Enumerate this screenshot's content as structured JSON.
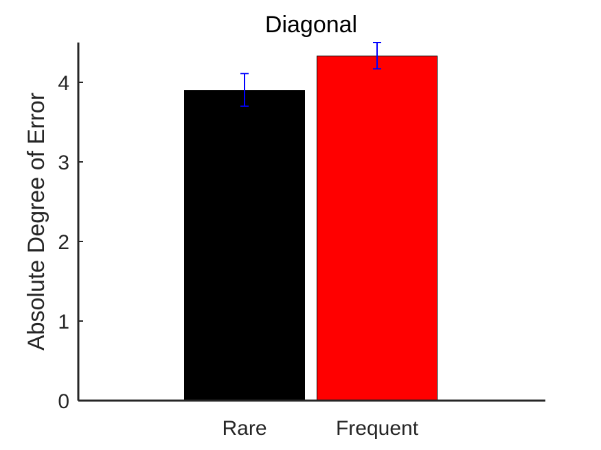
{
  "chart_data": {
    "type": "bar",
    "title": "Diagonal",
    "xlabel": "",
    "ylabel": "Absolute Degree of Error",
    "categories": [
      "Rare",
      "Frequent"
    ],
    "values": [
      3.9,
      4.33
    ],
    "error_low": [
      0.2,
      0.16
    ],
    "error_high": [
      0.21,
      0.17
    ],
    "bar_colors": [
      "#000000",
      "#ff0000"
    ],
    "error_color": "#0000ff",
    "ylim": [
      0,
      4.5
    ],
    "yticks": [
      0,
      1,
      2,
      3,
      4
    ],
    "grid": false,
    "legend": "none"
  }
}
